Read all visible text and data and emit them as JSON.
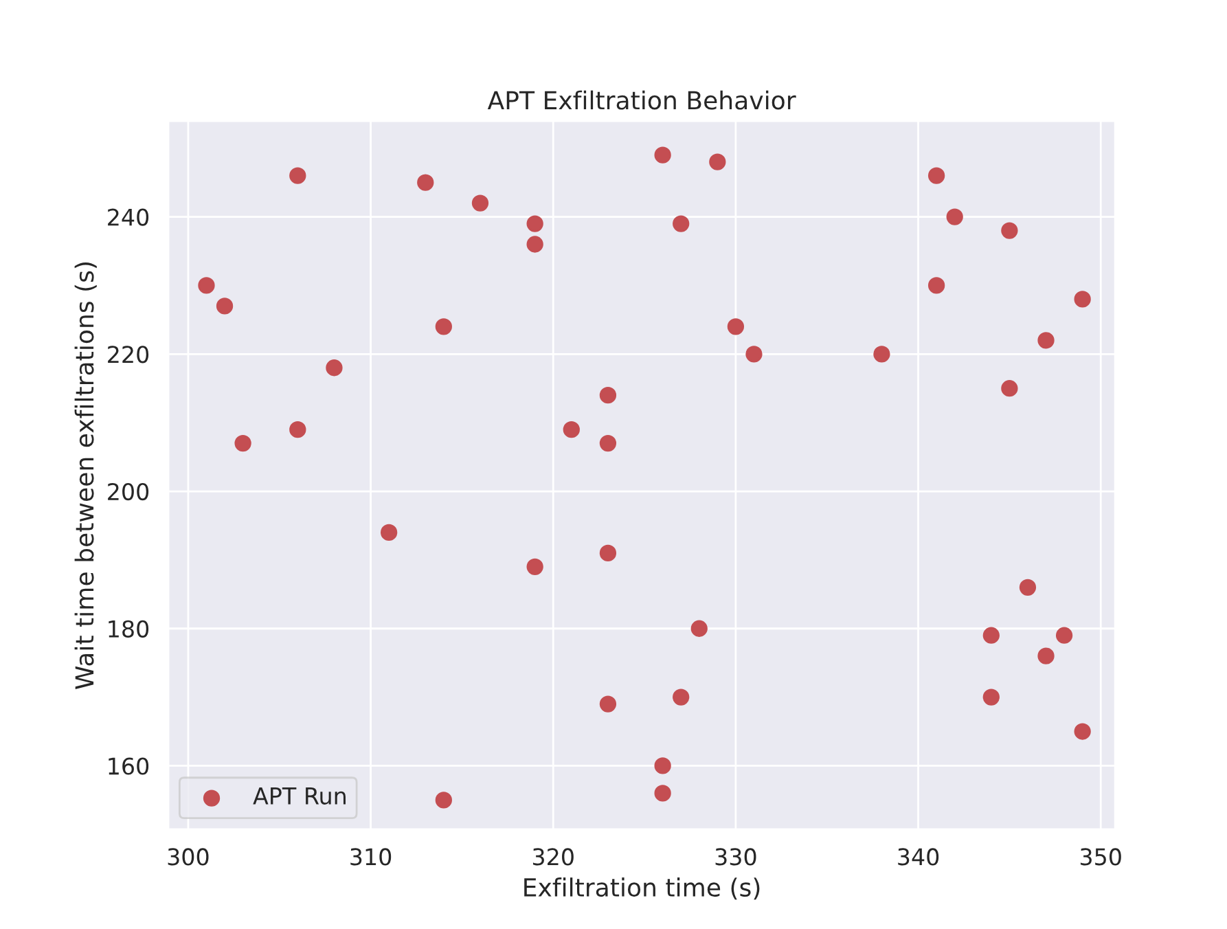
{
  "chart_data": {
    "type": "scatter",
    "title": "APT Exfiltration Behavior",
    "xlabel": "Exfiltration time (s)",
    "ylabel": "Wait time between exfiltrations (s)",
    "series": [
      {
        "name": "APT Run",
        "color": "#c44e52",
        "x": [
          301,
          302,
          303,
          306,
          306,
          308,
          311,
          313,
          314,
          314,
          316,
          319,
          319,
          319,
          321,
          323,
          323,
          323,
          323,
          326,
          326,
          326,
          327,
          327,
          328,
          329,
          330,
          331,
          338,
          341,
          341,
          342,
          345,
          345,
          346,
          344,
          344,
          347,
          347,
          348,
          349,
          349
        ],
        "values": [
          230,
          227,
          207,
          246,
          209,
          218,
          194,
          245,
          224,
          155,
          242,
          239,
          236,
          189,
          209,
          214,
          207,
          191,
          169,
          249,
          160,
          156,
          239,
          170,
          180,
          248,
          224,
          220,
          220,
          246,
          230,
          240,
          238,
          215,
          186,
          179,
          170,
          222,
          176,
          179,
          228,
          165
        ]
      }
    ],
    "xlim": [
      298.9,
      350.8
    ],
    "ylim": [
      150.7,
      254
    ],
    "xticks": [
      300,
      310,
      320,
      330,
      340,
      350
    ],
    "yticks": [
      160,
      180,
      200,
      220,
      240
    ],
    "grid": true,
    "legend": "bottom left",
    "marker": "circle"
  }
}
